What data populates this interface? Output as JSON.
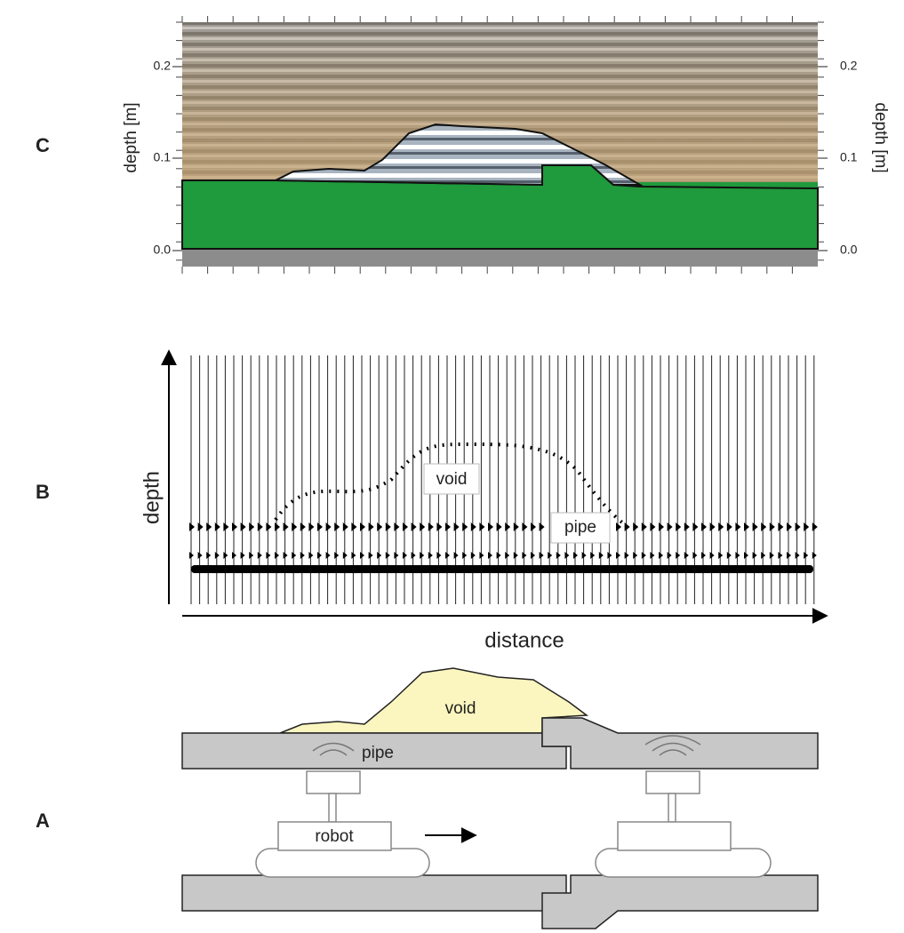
{
  "panels": [
    {
      "letter": "C",
      "left_axis": {
        "label": "depth [m]",
        "ticks": [
          "0.2",
          "0.1",
          "0.0"
        ]
      },
      "right_axis": {
        "label": "depth [m]",
        "ticks": [
          "0.2",
          "0.1",
          "0.0"
        ]
      }
    },
    {
      "letter": "B",
      "y_label": "depth",
      "x_label": "distance",
      "annotations": [
        "void",
        "pipe"
      ]
    },
    {
      "letter": "A",
      "labels": [
        "void",
        "pipe",
        "robot"
      ]
    }
  ]
}
